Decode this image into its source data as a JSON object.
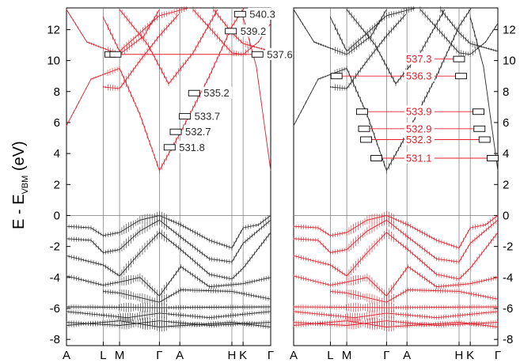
{
  "chart_data": {
    "type": "line",
    "ylabel": {
      "main": "E - E",
      "subscript": "VBM",
      "unit": " (eV)"
    },
    "ylim": [
      -8.4,
      13.4
    ],
    "yticks": [
      -8,
      -6,
      -4,
      -2,
      0,
      2,
      4,
      6,
      8,
      10,
      12
    ],
    "k_path": [
      {
        "label": "A",
        "k": 0.0
      },
      {
        "label": "L",
        "k": 0.18
      },
      {
        "label": "M",
        "k": 0.26
      },
      {
        "label": "Γ",
        "k": 0.455
      },
      {
        "label": "A",
        "k": 0.555
      },
      {
        "label": "H",
        "k": 0.81
      },
      {
        "label": "K",
        "k": 0.865
      },
      {
        "label": "Γ",
        "k": 1.0
      }
    ],
    "panels": [
      {
        "name": "left",
        "annotations": [
          {
            "text": "540.3",
            "energy": 13.0,
            "box_k": [
              0.85
            ]
          },
          {
            "text": "539.2",
            "energy": 11.9,
            "box_k": [
              0.805
            ]
          },
          {
            "text": "537.6",
            "energy": 10.4,
            "box_k": [
              0.215,
              0.24,
              0.935
            ]
          },
          {
            "text": "535.2",
            "energy": 7.9,
            "box_k": [
              0.625
            ]
          },
          {
            "text": "533.7",
            "energy": 6.4,
            "box_k": [
              0.58
            ]
          },
          {
            "text": "532.7",
            "energy": 5.4,
            "box_k": [
              0.535
            ]
          },
          {
            "text": "531.8",
            "energy": 4.4,
            "box_k": [
              0.505
            ]
          }
        ]
      },
      {
        "name": "right",
        "annotations": [
          {
            "text": "537.3",
            "energy": 10.1,
            "box_k": [
              0.81
            ]
          },
          {
            "text": "536.3",
            "energy": 9.0,
            "box_k": [
              0.21,
              0.82
            ]
          },
          {
            "text": "533.9",
            "energy": 6.7,
            "box_k": [
              0.335,
              0.905
            ]
          },
          {
            "text": "532.9",
            "energy": 5.6,
            "box_k": [
              0.345,
              0.91
            ]
          },
          {
            "text": "532.3",
            "energy": 4.9,
            "box_k": [
              0.355,
              0.935
            ]
          },
          {
            "text": "531.1",
            "energy": 3.7,
            "box_k": [
              0.405,
              0.975
            ]
          }
        ]
      }
    ]
  },
  "colors": {
    "red": "#e0202a",
    "black": "#2a2a2a",
    "axis": "#000000",
    "kline": "#777777"
  }
}
